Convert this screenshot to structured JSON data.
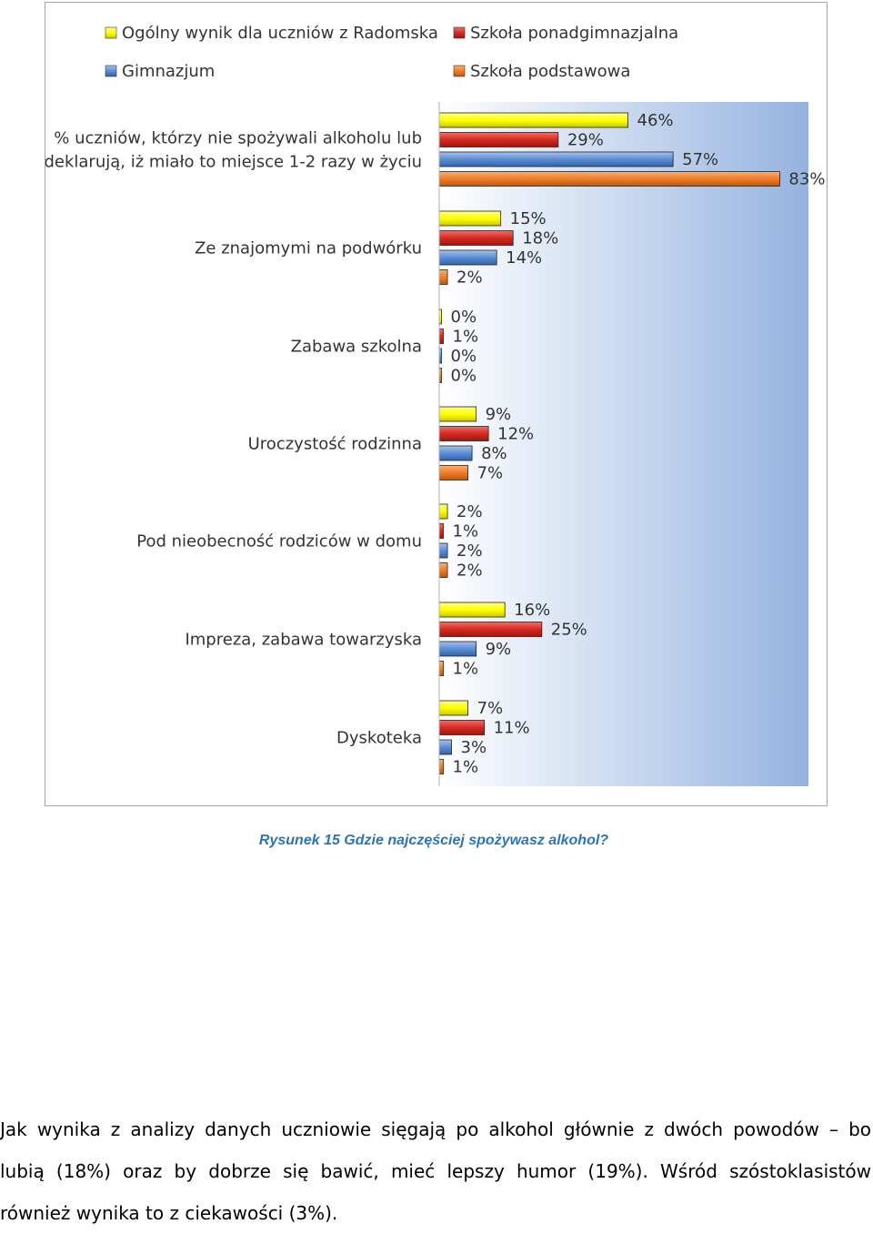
{
  "chart_data": {
    "type": "bar",
    "orientation": "horizontal",
    "title": "",
    "xlabel": "",
    "ylabel": "",
    "legend_position": "top",
    "grid": false,
    "xlim": [
      0,
      90
    ],
    "categories": [
      [
        "% uczniów, którzy nie spożywali alkoholu lub",
        "deklarują, iż miało to miejsce 1-2 razy w życiu"
      ],
      [
        "Ze znajomymi na podwórku"
      ],
      [
        "Zabawa szkolna"
      ],
      [
        "Uroczystość rodzinna"
      ],
      [
        "Pod nieobecność rodziców w domu"
      ],
      [
        "Impreza, zabawa towarzyska"
      ],
      [
        "Dyskoteka"
      ]
    ],
    "series": [
      {
        "name": "Ogólny wynik dla uczniów z Radomska",
        "color": "#ffff00",
        "values": [
          46,
          15,
          0,
          9,
          2,
          16,
          7
        ],
        "labels": [
          "46%",
          "15%",
          "0%",
          "9%",
          "2%",
          "16%",
          "7%"
        ]
      },
      {
        "name": "Szkoła ponadgimnazjalna",
        "color": "#d62a20",
        "values": [
          29,
          18,
          1,
          12,
          1,
          25,
          11
        ],
        "labels": [
          "29%",
          "18%",
          "1%",
          "12%",
          "1%",
          "25%",
          "11%"
        ]
      },
      {
        "name": "Gimnazjum",
        "color": "#5b8dd6",
        "values": [
          57,
          14,
          0,
          8,
          2,
          9,
          3
        ],
        "labels": [
          "57%",
          "14%",
          "0%",
          "8%",
          "2%",
          "9%",
          "3%"
        ]
      },
      {
        "name": "Szkoła podstawowa",
        "color": "#f07d28",
        "values": [
          83,
          2,
          0,
          7,
          2,
          1,
          1
        ],
        "labels": [
          "83%",
          "2%",
          "0%",
          "7%",
          "2%",
          "1%",
          "1%"
        ]
      }
    ]
  },
  "caption": "Rysunek 15 Gdzie najczęściej spożywasz alkohol?",
  "paragraph": {
    "line1": "Jak wynika z analizy danych uczniowie sięgają po alkohol głównie z dwóch powodów – bo",
    "line2": "lubią (18%) oraz by dobrze się bawić, mieć lepszy humor (19%). Wśród szóstoklasistów",
    "line3": "również wynika to z ciekawości (3%)."
  }
}
